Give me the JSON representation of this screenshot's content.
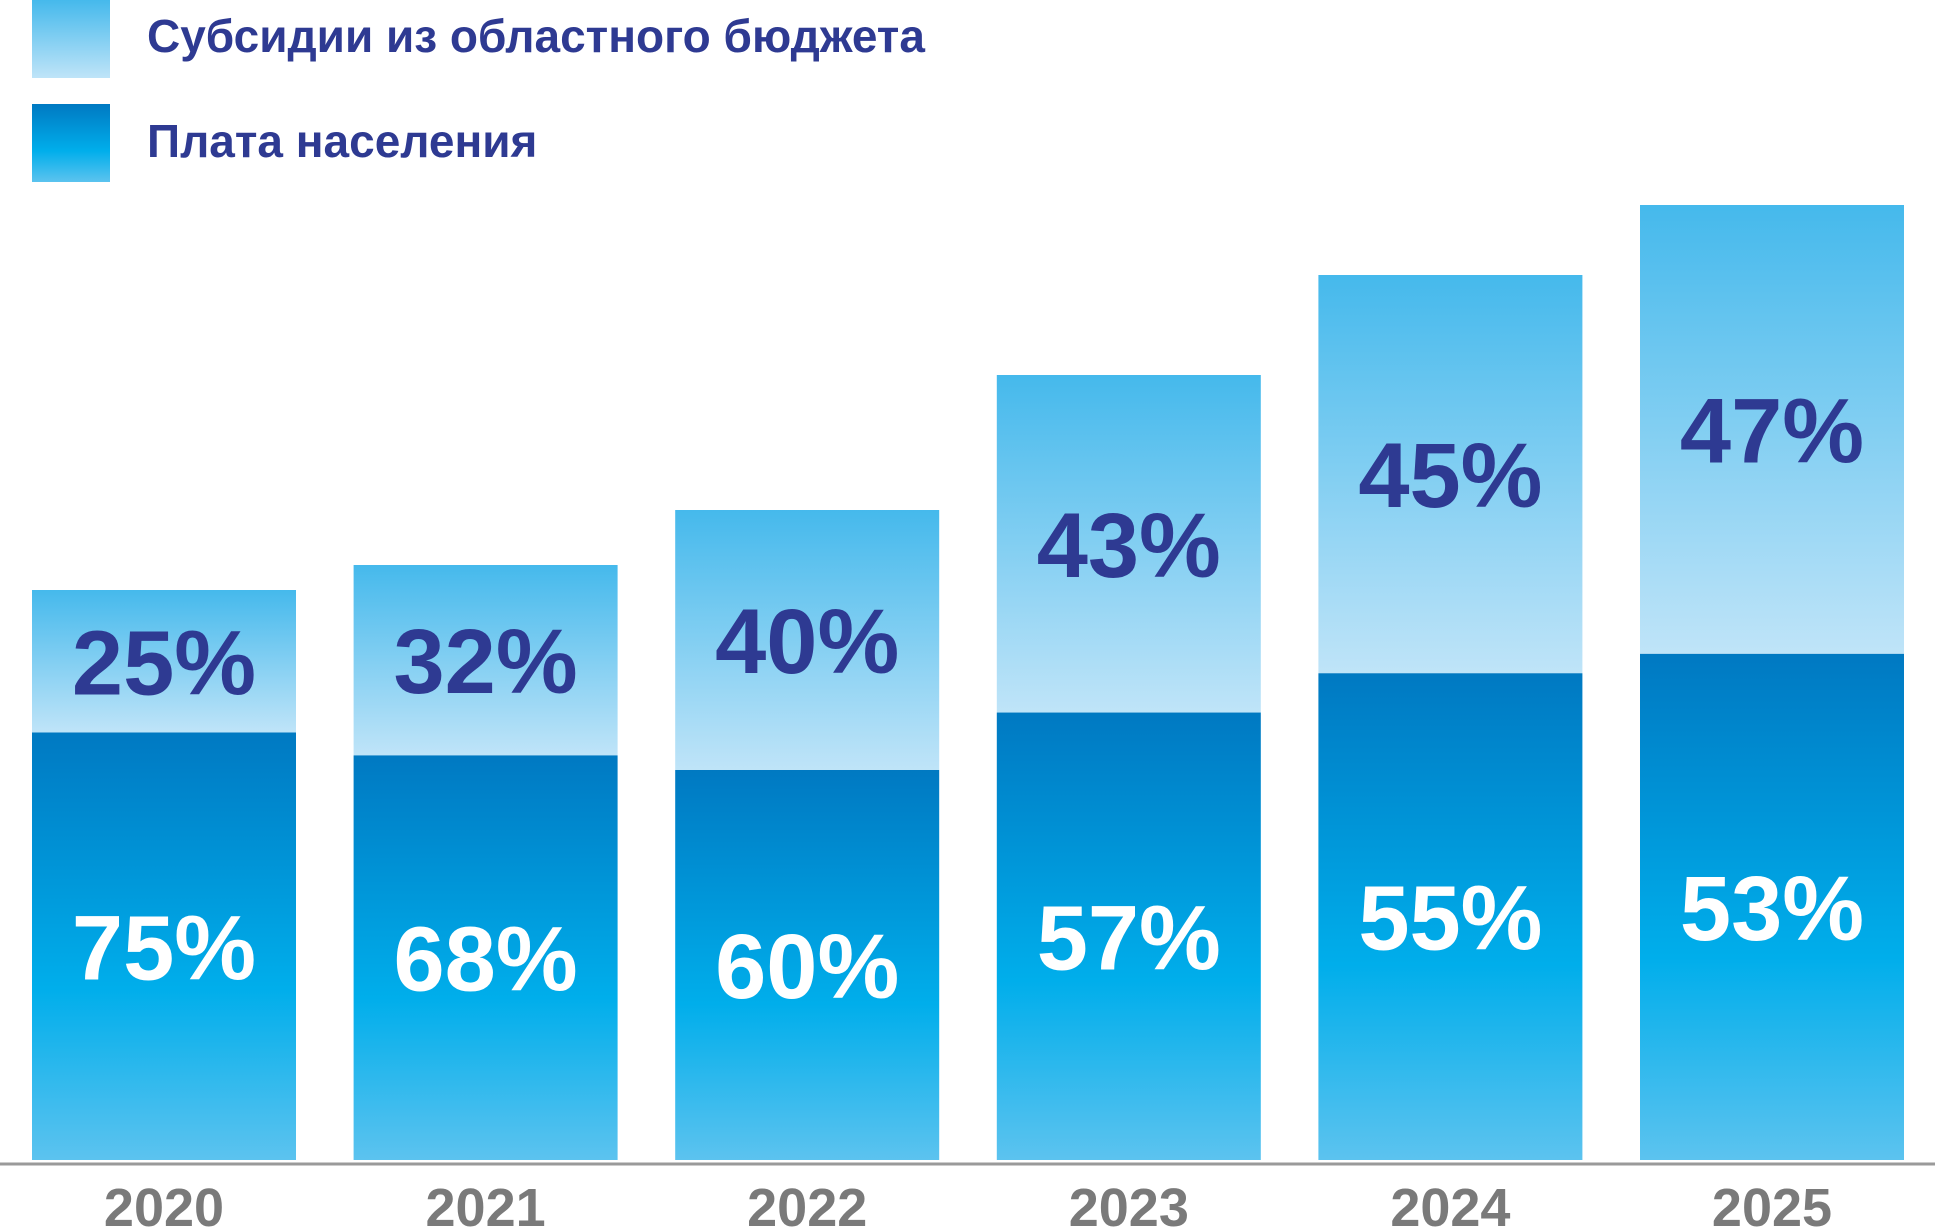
{
  "chart_data": {
    "type": "bar",
    "stacked": true,
    "categories": [
      "2020",
      "2021",
      "2022",
      "2023",
      "2024",
      "2025"
    ],
    "series": [
      {
        "name": "Плата населения",
        "values": [
          75,
          68,
          60,
          57,
          55,
          53
        ],
        "labels": [
          "75%",
          "68%",
          "60%",
          "57%",
          "55%",
          "53%"
        ]
      },
      {
        "name": "Субсидии из областного бюджета",
        "values": [
          25,
          32,
          40,
          43,
          45,
          47
        ],
        "labels": [
          "25%",
          "32%",
          "40%",
          "43%",
          "45%",
          "47%"
        ]
      }
    ],
    "relative_totals": [
      57,
      59.5,
      65,
      78.5,
      88.5,
      95.5
    ],
    "legend_position": "top-left",
    "colors": {
      "subsidy_top": "#45b9ec",
      "subsidy_bottom": "#bfe4f8",
      "payment_top": "#0079c2",
      "payment_mid": "#00aeeb",
      "payment_bottom": "#5cc3ef",
      "text_dark": "#2e3a92",
      "text_light": "#ffffff",
      "axis_text": "#7a7a7a",
      "axis_line": "#9a9a9a"
    }
  }
}
